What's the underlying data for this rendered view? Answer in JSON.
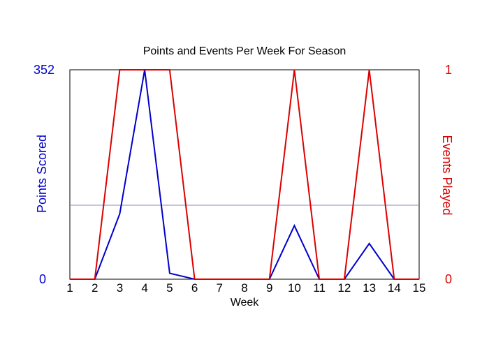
{
  "chart_data": {
    "type": "line",
    "title": "Points and Events Per Week For Season",
    "xlabel": "Week",
    "x": [
      1,
      2,
      3,
      4,
      5,
      6,
      7,
      8,
      9,
      10,
      11,
      12,
      13,
      14,
      15
    ],
    "left_axis": {
      "label": "Points Scored",
      "ylim": [
        0,
        352
      ],
      "ticks": [
        "0",
        "352"
      ],
      "color": "#0000cc"
    },
    "right_axis": {
      "label": "Events Played",
      "ylim": [
        0,
        1
      ],
      "ticks": [
        "0",
        "1"
      ],
      "color": "#dd0000"
    },
    "midline": {
      "color": "#8a8ac8"
    },
    "frame_color": "#000000",
    "series": [
      {
        "axis": "left",
        "color": "#0000cc",
        "values": [
          0,
          0,
          110,
          352,
          10,
          0,
          0,
          0,
          0,
          90,
          0,
          0,
          60,
          0,
          0
        ]
      },
      {
        "axis": "right",
        "color": "#dd0000",
        "values": [
          0,
          0,
          1,
          1,
          1,
          0,
          0,
          0,
          0,
          1,
          0,
          0,
          1,
          0,
          0
        ]
      }
    ]
  }
}
